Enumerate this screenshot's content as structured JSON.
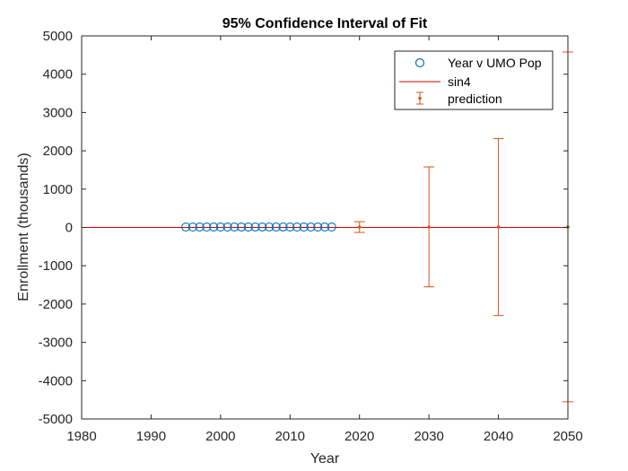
{
  "chart_data": {
    "type": "scatter",
    "title": "95% Confidence Interval of Fit",
    "xlabel": "Year",
    "ylabel": "Enrollment (thousands)",
    "xlim": [
      1980,
      2050
    ],
    "ylim": [
      -5000,
      5000
    ],
    "x_ticks": [
      1980,
      1990,
      2000,
      2010,
      2020,
      2030,
      2040,
      2050
    ],
    "y_ticks": [
      5000,
      4000,
      3000,
      2000,
      1000,
      0,
      -1000,
      -2000,
      -3000,
      -4000,
      -5000
    ],
    "grid": false,
    "legend_position": "top-right",
    "series": [
      {
        "name": "Year v UMO Pop",
        "kind": "scatter",
        "marker": "circle-open",
        "color": "#0072BD",
        "x": [
          1995,
          1996,
          1997,
          1998,
          1999,
          2000,
          2001,
          2002,
          2003,
          2004,
          2005,
          2006,
          2007,
          2008,
          2009,
          2010,
          2011,
          2012,
          2013,
          2014,
          2015,
          2016
        ],
        "y": [
          10.5,
          10.7,
          10.8,
          10.9,
          11.0,
          11.1,
          11.2,
          11.2,
          11.3,
          11.3,
          11.4,
          11.4,
          11.5,
          11.4,
          11.3,
          11.2,
          11.1,
          11.0,
          11.0,
          10.9,
          10.8,
          10.7
        ]
      },
      {
        "name": "sin4",
        "kind": "line",
        "color": "#D40000",
        "x": [
          1980,
          2050
        ],
        "y": [
          0,
          0
        ]
      },
      {
        "name": "prediction",
        "kind": "errorbar",
        "color": "#D95319",
        "x": [
          2020,
          2030,
          2040,
          2050
        ],
        "y": [
          10,
          10,
          10,
          10
        ],
        "lower": [
          -130,
          -1550,
          -2300,
          -4550
        ],
        "upper": [
          150,
          1580,
          2320,
          4580
        ]
      }
    ]
  }
}
